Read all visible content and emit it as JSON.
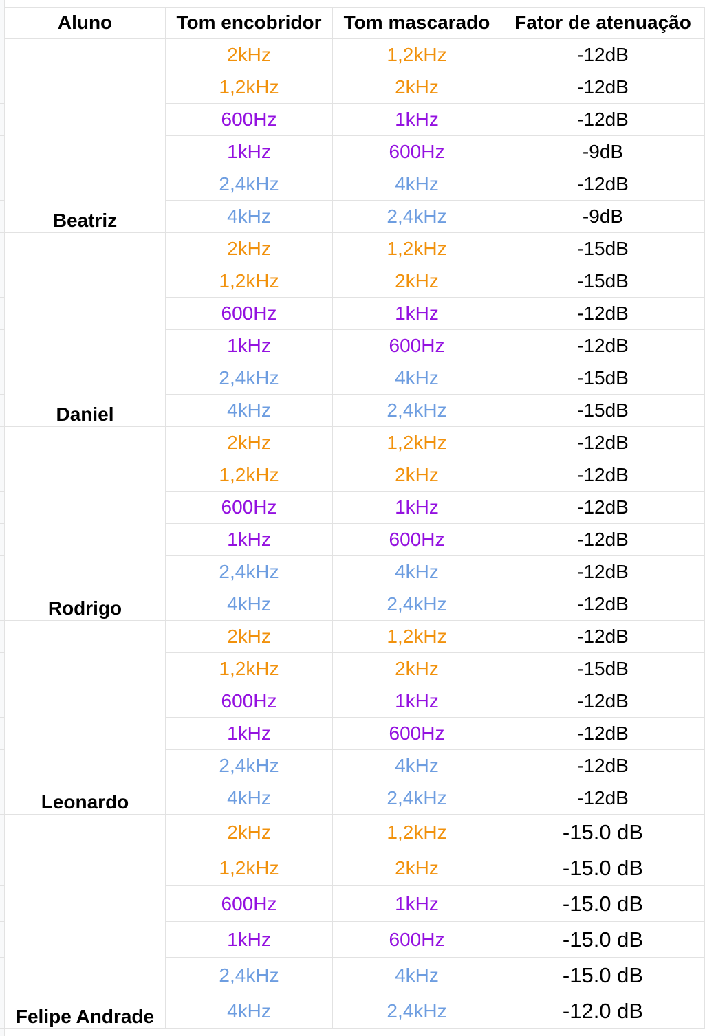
{
  "colors": {
    "orange": "#f1910c",
    "purple": "#9411e0",
    "blue": "#6d9de0",
    "black": "#000000",
    "grid": "#e2e2e2"
  },
  "headers": {
    "student": "Aluno",
    "masker": "Tom encobridor",
    "masked": "Tom mascarado",
    "attenuation": "Fator de atenuação"
  },
  "students": [
    {
      "name": "Beatriz",
      "rows": [
        {
          "masker": "2kHz",
          "masked": "1,2kHz",
          "attenuation": "-12dB",
          "color": "orange"
        },
        {
          "masker": "1,2kHz",
          "masked": "2kHz",
          "attenuation": "-12dB",
          "color": "orange"
        },
        {
          "masker": "600Hz",
          "masked": "1kHz",
          "attenuation": "-12dB",
          "color": "purple"
        },
        {
          "masker": "1kHz",
          "masked": "600Hz",
          "attenuation": "-9dB",
          "color": "purple"
        },
        {
          "masker": "2,4kHz",
          "masked": "4kHz",
          "attenuation": "-12dB",
          "color": "blue"
        },
        {
          "masker": "4kHz",
          "masked": "2,4kHz",
          "attenuation": "-9dB",
          "color": "blue"
        }
      ]
    },
    {
      "name": "Daniel",
      "rows": [
        {
          "masker": "2kHz",
          "masked": "1,2kHz",
          "attenuation": "-15dB",
          "color": "orange"
        },
        {
          "masker": "1,2kHz",
          "masked": "2kHz",
          "attenuation": "-15dB",
          "color": "orange"
        },
        {
          "masker": "600Hz",
          "masked": "1kHz",
          "attenuation": "-12dB",
          "color": "purple"
        },
        {
          "masker": "1kHz",
          "masked": "600Hz",
          "attenuation": "-12dB",
          "color": "purple"
        },
        {
          "masker": "2,4kHz",
          "masked": "4kHz",
          "attenuation": "-15dB",
          "color": "blue"
        },
        {
          "masker": "4kHz",
          "masked": "2,4kHz",
          "attenuation": "-15dB",
          "color": "blue"
        }
      ]
    },
    {
      "name": "Rodrigo",
      "rows": [
        {
          "masker": "2kHz",
          "masked": "1,2kHz",
          "attenuation": "-12dB",
          "color": "orange"
        },
        {
          "masker": "1,2kHz",
          "masked": "2kHz",
          "attenuation": "-12dB",
          "color": "orange"
        },
        {
          "masker": "600Hz",
          "masked": "1kHz",
          "attenuation": "-12dB",
          "color": "purple"
        },
        {
          "masker": "1kHz",
          "masked": "600Hz",
          "attenuation": "-12dB",
          "color": "purple"
        },
        {
          "masker": "2,4kHz",
          "masked": "4kHz",
          "attenuation": "-12dB",
          "color": "blue"
        },
        {
          "masker": "4kHz",
          "masked": "2,4kHz",
          "attenuation": "-12dB",
          "color": "blue"
        }
      ]
    },
    {
      "name": "Leonardo",
      "rows": [
        {
          "masker": "2kHz",
          "masked": "1,2kHz",
          "attenuation": "-12dB",
          "color": "orange"
        },
        {
          "masker": "1,2kHz",
          "masked": "2kHz",
          "attenuation": "-15dB",
          "color": "orange"
        },
        {
          "masker": "600Hz",
          "masked": "1kHz",
          "attenuation": "-12dB",
          "color": "purple"
        },
        {
          "masker": "1kHz",
          "masked": "600Hz",
          "attenuation": "-12dB",
          "color": "purple"
        },
        {
          "masker": "2,4kHz",
          "masked": "4kHz",
          "attenuation": "-12dB",
          "color": "blue"
        },
        {
          "masker": "4kHz",
          "masked": "2,4kHz",
          "attenuation": "-12dB",
          "color": "blue"
        }
      ]
    },
    {
      "name": "Felipe Andrade",
      "rows": [
        {
          "masker": "2kHz",
          "masked": "1,2kHz",
          "attenuation": "-15.0 dB",
          "color": "orange"
        },
        {
          "masker": "1,2kHz",
          "masked": "2kHz",
          "attenuation": "-15.0 dB",
          "color": "orange"
        },
        {
          "masker": "600Hz",
          "masked": "1kHz",
          "attenuation": "-15.0 dB",
          "color": "purple"
        },
        {
          "masker": "1kHz",
          "masked": "600Hz",
          "attenuation": "-15.0 dB",
          "color": "purple"
        },
        {
          "masker": "2,4kHz",
          "masked": "4kHz",
          "attenuation": "-15.0 dB",
          "color": "blue"
        },
        {
          "masker": "4kHz",
          "masked": "2,4kHz",
          "attenuation": "-12.0 dB",
          "color": "blue"
        }
      ]
    }
  ]
}
